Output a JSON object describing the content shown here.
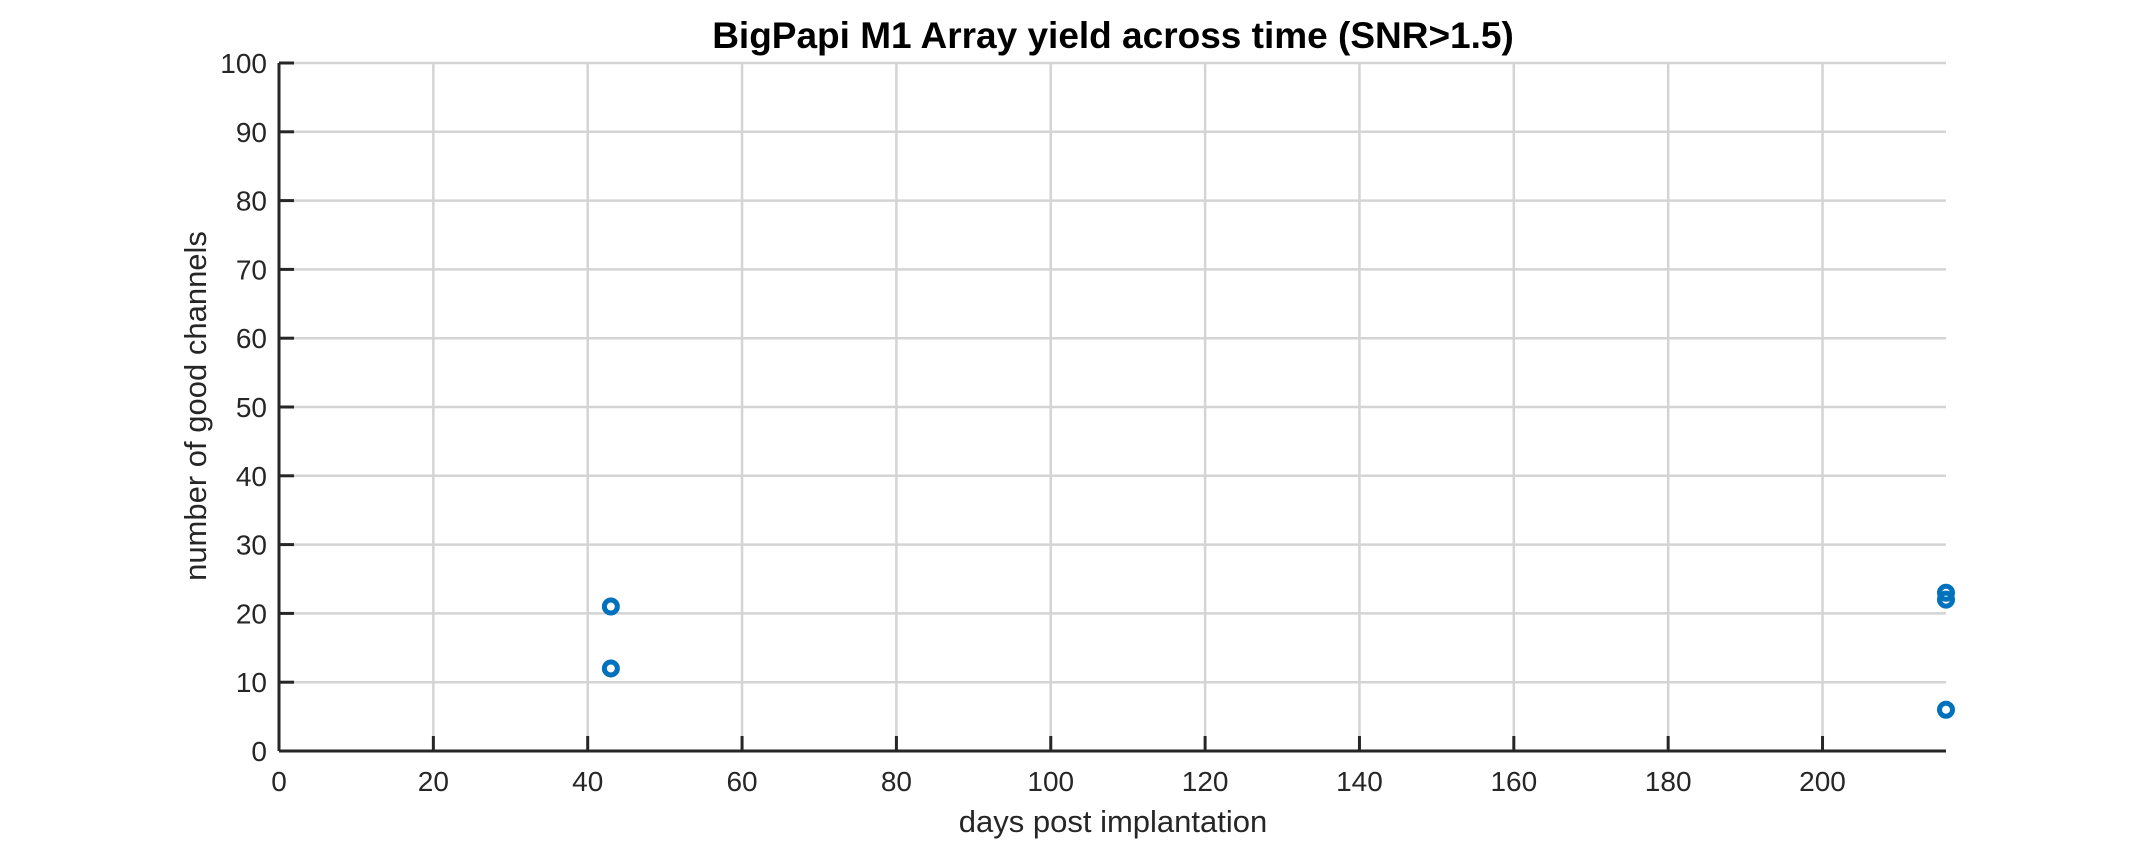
{
  "chart_data": {
    "type": "scatter",
    "title": "BigPapi M1 Array yield across time (SNR>1.5)",
    "xlabel": "days post implantation",
    "ylabel": "number of good channels",
    "xlim": [
      0,
      216
    ],
    "ylim": [
      0,
      100
    ],
    "xticks": [
      0,
      20,
      40,
      60,
      80,
      100,
      120,
      140,
      160,
      180,
      200
    ],
    "yticks": [
      0,
      10,
      20,
      30,
      40,
      50,
      60,
      70,
      80,
      90,
      100
    ],
    "grid": true,
    "marker": "circle",
    "series": [
      {
        "color": "#0072bd",
        "points": [
          {
            "x": 43,
            "y": 21
          },
          {
            "x": 43,
            "y": 12
          },
          {
            "x": 216,
            "y": 23
          },
          {
            "x": 216,
            "y": 22
          },
          {
            "x": 216,
            "y": 6
          }
        ]
      }
    ]
  }
}
